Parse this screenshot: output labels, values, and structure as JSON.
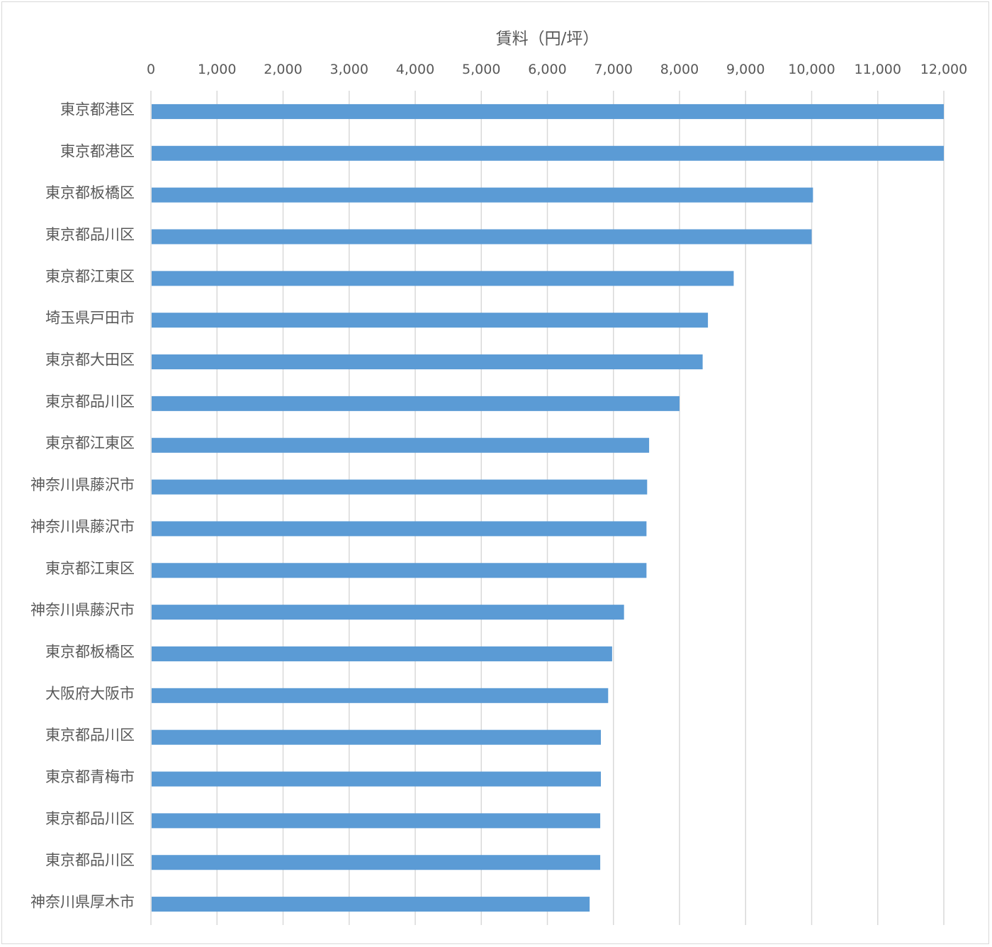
{
  "chart_data": {
    "type": "bar",
    "orientation": "horizontal",
    "xlabel": "賃料（円/坪）",
    "ylabel": "",
    "xlim": [
      0,
      12000
    ],
    "xticks": [
      0,
      1000,
      2000,
      3000,
      4000,
      5000,
      6000,
      7000,
      8000,
      9000,
      10000,
      11000,
      12000
    ],
    "xtick_labels": [
      "0",
      "1,000",
      "2,000",
      "3,000",
      "4,000",
      "5,000",
      "6,000",
      "7,000",
      "8,000",
      "9,000",
      "10,000",
      "11,000",
      "12,000"
    ],
    "x_axis_position": "top",
    "grid": true,
    "categories": [
      "東京都港区",
      "東京都港区",
      "東京都板橋区",
      "東京都品川区",
      "東京都江東区",
      "埼玉県戸田市",
      "東京都大田区",
      "東京都品川区",
      "東京都江東区",
      "神奈川県藤沢市",
      "神奈川県藤沢市",
      "東京都江東区",
      "神奈川県藤沢市",
      "東京都板橋区",
      "大阪府大阪市",
      "東京都品川区",
      "東京都青梅市",
      "東京都品川区",
      "東京都品川区",
      "神奈川県厚木市"
    ],
    "values": [
      12000,
      12000,
      10020,
      10000,
      8820,
      8430,
      8350,
      8000,
      7540,
      7510,
      7500,
      7500,
      7160,
      6980,
      6920,
      6810,
      6810,
      6800,
      6800,
      6640
    ],
    "bar_color": "#5b9bd5"
  }
}
